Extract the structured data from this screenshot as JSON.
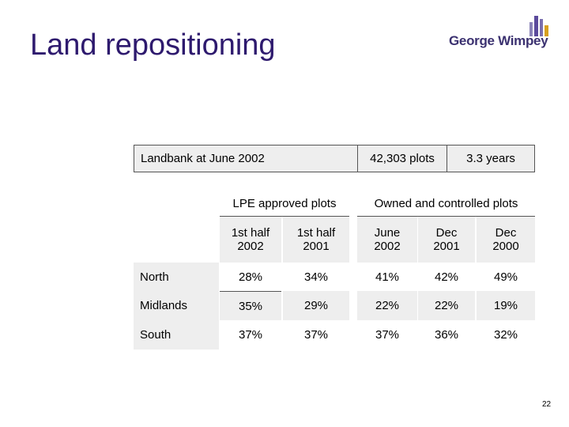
{
  "slide": {
    "title": "Land repositioning",
    "logo_text": "George Wimpey",
    "page_number": "22"
  },
  "landbank": {
    "label": "Landbank at June 2002",
    "plots": "42,303 plots",
    "years": "3.3 years"
  },
  "table": {
    "group_headers": [
      "LPE approved plots",
      "Owned and controlled plots"
    ],
    "column_headers": [
      [
        "1st half",
        "2002"
      ],
      [
        "1st half",
        "2001"
      ],
      [
        "June",
        "2002"
      ],
      [
        "Dec",
        "2001"
      ],
      [
        "Dec",
        "2000"
      ]
    ],
    "rows": [
      {
        "region": "North",
        "values": [
          "28%",
          "34%",
          "41%",
          "42%",
          "49%"
        ]
      },
      {
        "region": "Midlands",
        "values": [
          "35%",
          "29%",
          "22%",
          "22%",
          "19%"
        ]
      },
      {
        "region": "South",
        "values": [
          "37%",
          "37%",
          "37%",
          "36%",
          "32%"
        ]
      }
    ]
  },
  "colors": {
    "title": "#2e1a6e",
    "logo": "#3b3170",
    "cell_shade": "#eeeeee"
  }
}
